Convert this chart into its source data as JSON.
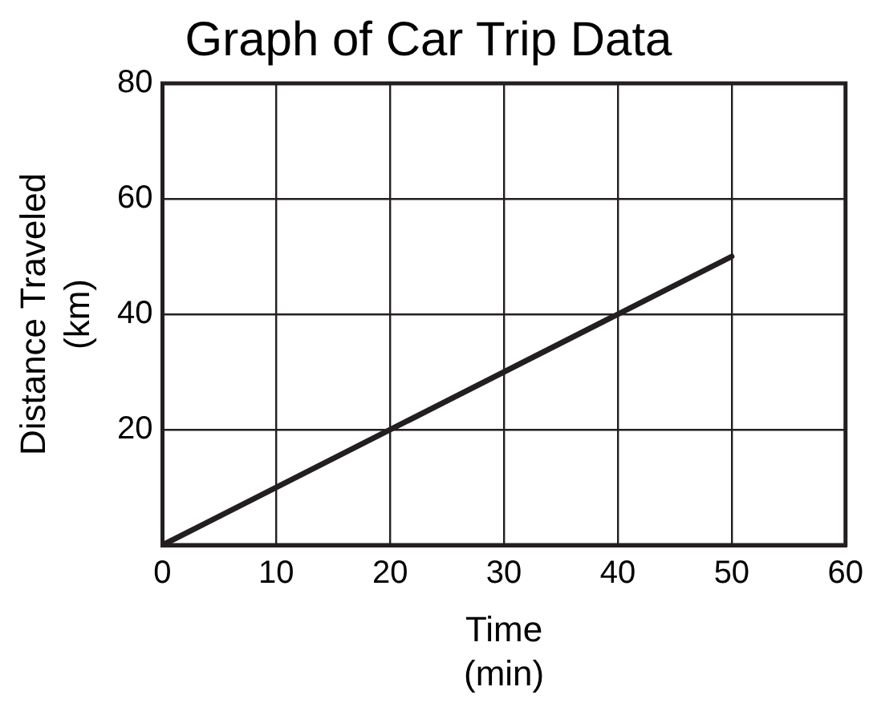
{
  "chart_data": {
    "type": "line",
    "title": "Graph of Car Trip Data",
    "xlabel": "Time\n(min)",
    "ylabel": "Distance Traveled\n(km)",
    "x": [
      0,
      50
    ],
    "series": [
      {
        "color": "#231f20",
        "values": [
          0,
          50
        ]
      }
    ],
    "xlim": [
      0,
      60
    ],
    "xticks": [
      0,
      10,
      20,
      30,
      40,
      50,
      60
    ],
    "ylim": [
      0,
      80
    ],
    "yticks": [
      {
        "value": 0,
        "label": null
      },
      20,
      40,
      60,
      80
    ],
    "grid": true,
    "legend": false,
    "marker": "none",
    "line_style": "solid"
  }
}
